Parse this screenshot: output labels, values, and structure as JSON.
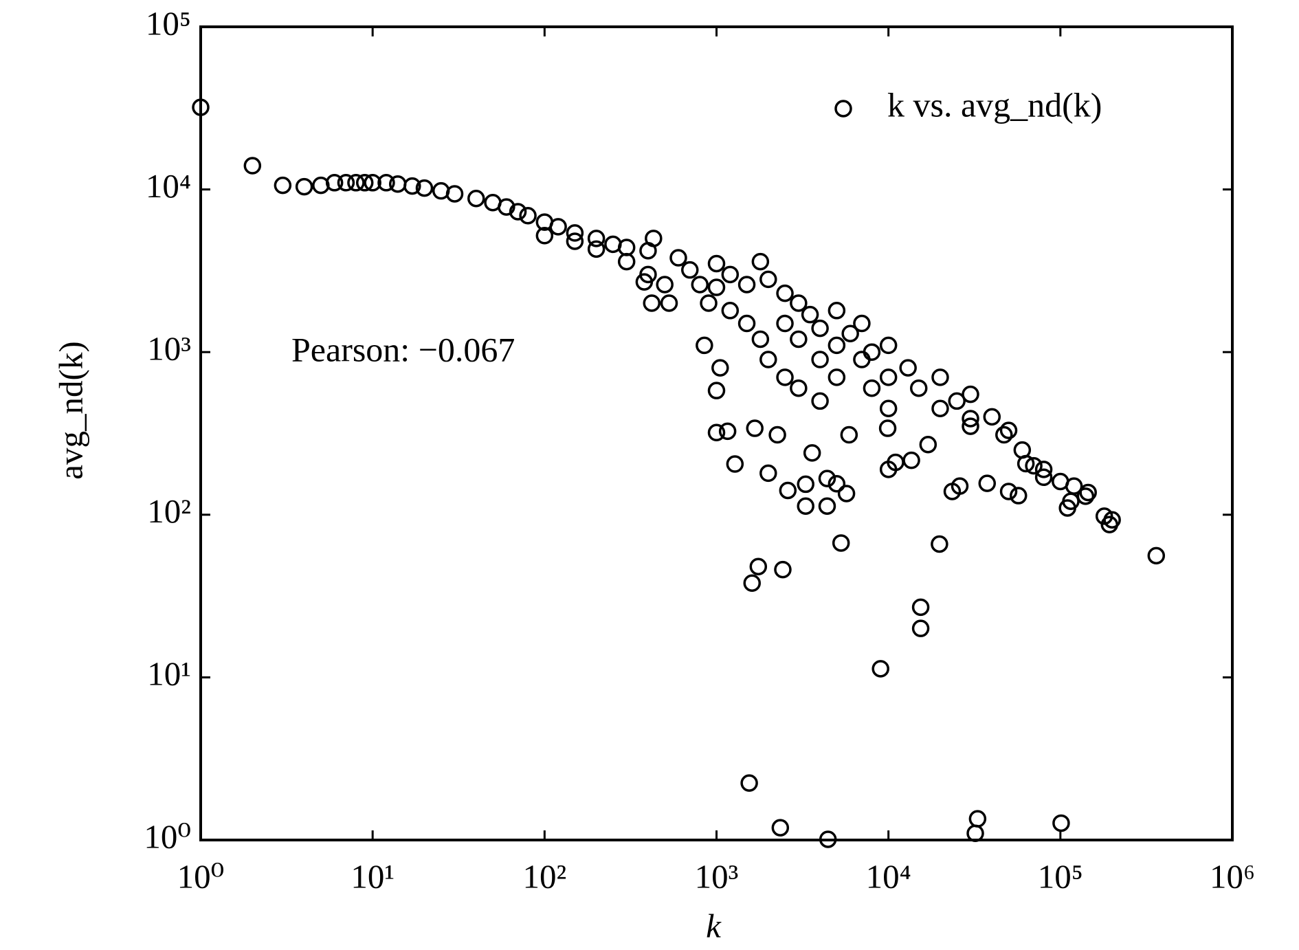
{
  "chart_data": {
    "type": "scatter",
    "xlabel": "k",
    "ylabel": "avg_nd(k)",
    "annotation": "Pearson: −0.067",
    "xscale": "log",
    "yscale": "log",
    "xlim": [
      1,
      1000000
    ],
    "ylim": [
      1,
      100000
    ],
    "xticks": [
      {
        "value": 1,
        "label": "10⁰"
      },
      {
        "value": 10,
        "label": "10¹"
      },
      {
        "value": 100,
        "label": "10²"
      },
      {
        "value": 1000,
        "label": "10³"
      },
      {
        "value": 10000,
        "label": "10⁴"
      },
      {
        "value": 100000,
        "label": "10⁵"
      },
      {
        "value": 1000000,
        "label": "10⁶"
      }
    ],
    "yticks": [
      {
        "value": 1,
        "label": "10⁰"
      },
      {
        "value": 10,
        "label": "10¹"
      },
      {
        "value": 100,
        "label": "10²"
      },
      {
        "value": 1000,
        "label": "10³"
      },
      {
        "value": 10000,
        "label": "10⁴"
      },
      {
        "value": 100000,
        "label": "10⁵"
      }
    ],
    "legend": "upper right",
    "grid": false,
    "x": [
      1,
      2,
      3,
      4,
      5,
      6,
      7,
      8,
      9,
      10,
      12,
      14,
      17,
      20,
      25,
      30,
      40,
      50,
      60,
      70,
      80,
      100,
      120,
      150,
      200,
      250,
      300,
      400,
      430,
      100,
      150,
      200,
      300,
      400,
      500,
      600,
      700,
      800,
      900,
      1000,
      1000,
      1200,
      1200,
      1500,
      1500,
      1800,
      1800,
      2000,
      2000,
      2500,
      2500,
      2500,
      3000,
      3000,
      3000,
      3500,
      4000,
      4000,
      4000,
      5000,
      5000,
      5000,
      6000,
      7000,
      7000,
      8000,
      8000,
      10000,
      10000,
      10000,
      13000,
      15000,
      20000,
      20000,
      25000,
      30000,
      30000,
      40000,
      50000,
      60000,
      70000,
      80000,
      100000,
      120000,
      140000,
      361000,
      193000,
      200000,
      180000,
      5300,
      19800,
      1750,
      1610,
      2430,
      15400,
      15400,
      9000,
      1550,
      2350,
      4450,
      33000,
      32000,
      101000,
      1280,
      1160,
      2000,
      2600,
      3300,
      3300,
      4400,
      4400,
      5000,
      5700,
      10000,
      11000,
      13600,
      23500,
      26000,
      37500,
      50000,
      57000,
      110000,
      115000,
      145000,
      1000,
      1050,
      850,
      420,
      530,
      380,
      1000,
      1670,
      2260,
      3600,
      5900,
      9900,
      17000,
      30000,
      47000,
      80000,
      63000
    ],
    "series": [
      {
        "name": "k vs. avg_nd(k)",
        "color": "#000000",
        "values": [
          32000,
          14000,
          10600,
          10400,
          10600,
          11000,
          11000,
          11000,
          11000,
          11000,
          11000,
          10800,
          10500,
          10200,
          9800,
          9400,
          8800,
          8300,
          7800,
          7300,
          6900,
          6300,
          5900,
          5400,
          5000,
          4600,
          4400,
          4200,
          5000,
          5200,
          4800,
          4300,
          3600,
          3000,
          2600,
          3800,
          3200,
          2600,
          2000,
          3500,
          2500,
          3000,
          1800,
          2600,
          1500,
          3600,
          1200,
          2800,
          900,
          2300,
          1500,
          700,
          2000,
          1200,
          600,
          1700,
          1400,
          900,
          500,
          1800,
          1100,
          700,
          1300,
          1500,
          900,
          1000,
          600,
          1100,
          700,
          450,
          800,
          600,
          700,
          450,
          500,
          550,
          350,
          400,
          330,
          250,
          200,
          170,
          160,
          150,
          130,
          56,
          87,
          93,
          98,
          67,
          66,
          48,
          38,
          46,
          27,
          20,
          11.3,
          2.24,
          1.19,
          1.01,
          1.35,
          1.1,
          1.27,
          205,
          326,
          180,
          141,
          113,
          154,
          113,
          167,
          155,
          135,
          190,
          210,
          216,
          139,
          150,
          156,
          139,
          131,
          110,
          121,
          137,
          580,
          800,
          1100,
          2000,
          2000,
          2700,
          320,
          340,
          310,
          240,
          310,
          340,
          270,
          390,
          310,
          190,
          206
        ]
      }
    ]
  }
}
